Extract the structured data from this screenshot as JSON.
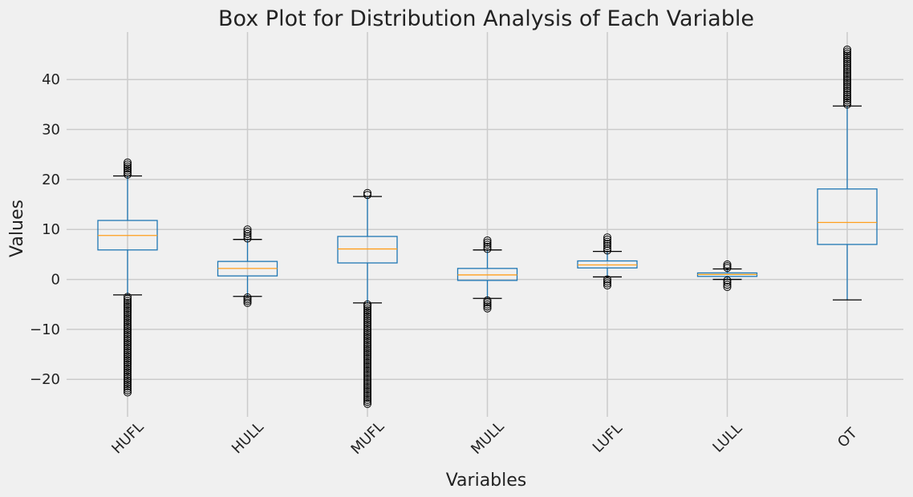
{
  "chart_data": {
    "type": "box",
    "title": "Box Plot for Distribution Analysis of Each Variable",
    "xlabel": "Variables",
    "ylabel": "Values",
    "ylim": [
      -27.5,
      49.5
    ],
    "yticks": [
      -20,
      -10,
      0,
      10,
      20,
      30,
      40
    ],
    "grid": true,
    "colors": {
      "box": "#1f77b4",
      "median": "#ff9e1b",
      "whisker": "#1f77b4",
      "cap": "#000000",
      "flier": "#000000",
      "grid": "#cbcbcb",
      "background": "#f0f0f0"
    },
    "categories": [
      "HUFL",
      "HULL",
      "MUFL",
      "MULL",
      "LUFL",
      "LULL",
      "OT"
    ],
    "boxes": [
      {
        "name": "HUFL",
        "whisker_low": -3.1,
        "q1": 5.9,
        "median": 8.8,
        "q3": 11.8,
        "whisker_high": 20.7,
        "fliers_low": [
          -3.5,
          -22.6
        ],
        "fliers_high": [
          21.0,
          23.4
        ]
      },
      {
        "name": "HULL",
        "whisker_low": -3.4,
        "q1": 0.7,
        "median": 2.2,
        "q3": 3.6,
        "whisker_high": 8.0,
        "fliers_low": [
          -3.6,
          -4.7
        ],
        "fliers_high": [
          8.2,
          10.0
        ]
      },
      {
        "name": "MUFL",
        "whisker_low": -4.7,
        "q1": 3.3,
        "median": 6.1,
        "q3": 8.6,
        "whisker_high": 16.6,
        "fliers_low": [
          -5.0,
          -24.9
        ],
        "fliers_high": [
          16.9,
          17.3
        ]
      },
      {
        "name": "MULL",
        "whisker_low": -3.8,
        "q1": -0.2,
        "median": 0.9,
        "q3": 2.2,
        "whisker_high": 5.9,
        "fliers_low": [
          -4.2,
          -5.8
        ],
        "fliers_high": [
          6.1,
          7.8
        ]
      },
      {
        "name": "LUFL",
        "whisker_low": 0.5,
        "q1": 2.3,
        "median": 2.9,
        "q3": 3.7,
        "whisker_high": 5.6,
        "fliers_low": [
          0.0,
          -1.2
        ],
        "fliers_high": [
          5.8,
          8.4
        ]
      },
      {
        "name": "LULL",
        "whisker_low": 0.0,
        "q1": 0.6,
        "median": 1.0,
        "q3": 1.3,
        "whisker_high": 2.1,
        "fliers_low": [
          -0.2,
          -1.5
        ],
        "fliers_high": [
          2.3,
          3.0
        ]
      },
      {
        "name": "OT",
        "whisker_low": -4.1,
        "q1": 7.0,
        "median": 11.4,
        "q3": 18.1,
        "whisker_high": 34.7,
        "fliers_low": [],
        "fliers_high": [
          35.0,
          46.0
        ]
      }
    ]
  }
}
